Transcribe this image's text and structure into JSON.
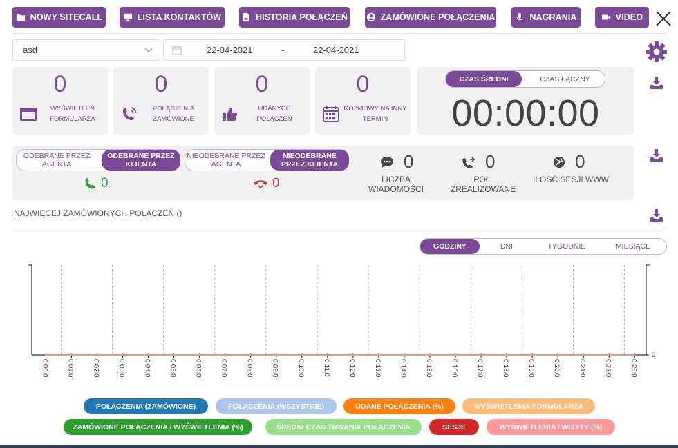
{
  "toolbar": {
    "buttons": [
      {
        "label": "NOWY SITECALL",
        "icon": "folder-icon"
      },
      {
        "label": "LISTA KONTAKTÓW",
        "icon": "monitor-icon"
      },
      {
        "label": "HISTORIA POŁĄCZEŃ",
        "icon": "document-icon"
      },
      {
        "label": "ZAMÓWIONE POŁĄCZENIA",
        "icon": "user-circle-icon"
      },
      {
        "label": "NAGRANIA",
        "icon": "microphone-icon"
      },
      {
        "label": "VIDEO",
        "icon": "video-camera-icon"
      }
    ]
  },
  "filters": {
    "select_value": "asd",
    "date_from": "22-04-2021",
    "date_separator": "-",
    "date_to": "22-04-2021"
  },
  "stats": [
    {
      "value": "0",
      "label": "WYŚWIETLEŃ FORMULARZA",
      "icon": "window-icon"
    },
    {
      "value": "0",
      "label": "POŁĄCZENIA ZAMÓWIONE",
      "icon": "phone-ringing-icon"
    },
    {
      "value": "0",
      "label": "UDANYCH POŁĄCZEŃ",
      "icon": "thumbs-up-icon"
    },
    {
      "value": "0",
      "label": "ROZMOWY NA INNY TERMIN",
      "icon": "calendar-icon"
    }
  ],
  "time": {
    "toggle_avg": "CZAS ŚREDNI",
    "toggle_total": "CZAS ŁĄCZNY",
    "value": "00:00:00"
  },
  "calls": {
    "answered_agent": "ODEBRANE PRZEZ AGENTA",
    "answered_client": "ODEBRANE PRZEZ KLIENTA",
    "answered_count": "0",
    "missed_agent": "NIEODEBRANE PRZEZ AGENTA",
    "missed_client": "NIEODEBRANE PRZEZ KLIENTA",
    "missed_count": "0",
    "messages_value": "0",
    "messages_label": "LICZBA WIADOMOŚCI",
    "realized_value": "0",
    "realized_label": "POŁ. ZREALIZOWANE",
    "sessions_value": "0",
    "sessions_label": "ILOŚĆ SESJI WWW"
  },
  "section": {
    "title": "NAJWIĘCEJ ZAMÓWIONYCH POŁĄCZEŃ ()"
  },
  "chart_tabs": {
    "hours": "GODZINY",
    "days": "DNI",
    "weeks": "TYGODNIE",
    "months": "MIESIĄCE"
  },
  "chart_data": {
    "type": "line",
    "x": [
      "0 00:0",
      "0 01:0",
      "0 02:0",
      "0 03:0",
      "0 04:0",
      "0 05:0",
      "0 06:0",
      "0 07:0",
      "0 08:0",
      "0 09:0",
      "0 10:0",
      "0 11:0",
      "0 12:0",
      "0 13:0",
      "0 14:0",
      "0 15:0",
      "0 16:0",
      "0 17:0",
      "0 18:0",
      "0 19:0",
      "0 20:0",
      "0 21:0",
      "0 22:0",
      "0 23:0"
    ],
    "series": [
      {
        "name": "POŁĄCZENIA (ZAMÓWIONE)",
        "color": "#1f77b4",
        "values": [
          0,
          0,
          0,
          0,
          0,
          0,
          0,
          0,
          0,
          0,
          0,
          0,
          0,
          0,
          0,
          0,
          0,
          0,
          0,
          0,
          0,
          0,
          0,
          0
        ]
      },
      {
        "name": "POŁĄCZENIA (WSZYSTKIE)",
        "color": "#aec7e8",
        "values": [
          0,
          0,
          0,
          0,
          0,
          0,
          0,
          0,
          0,
          0,
          0,
          0,
          0,
          0,
          0,
          0,
          0,
          0,
          0,
          0,
          0,
          0,
          0,
          0
        ]
      },
      {
        "name": "UDANE POŁĄCZENIA (%)",
        "color": "#ff7f0e",
        "values": [
          0,
          0,
          0,
          0,
          0,
          0,
          0,
          0,
          0,
          0,
          0,
          0,
          0,
          0,
          0,
          0,
          0,
          0,
          0,
          0,
          0,
          0,
          0,
          0
        ]
      },
      {
        "name": "WYŚWIETLENIA FORMULARZA",
        "color": "#ffbb78",
        "values": [
          0,
          0,
          0,
          0,
          0,
          0,
          0,
          0,
          0,
          0,
          0,
          0,
          0,
          0,
          0,
          0,
          0,
          0,
          0,
          0,
          0,
          0,
          0,
          0
        ]
      },
      {
        "name": "ZAMÓWIONE POŁĄCZENIA / WYŚWIETLENIA (%)",
        "color": "#2ca02c",
        "values": [
          0,
          0,
          0,
          0,
          0,
          0,
          0,
          0,
          0,
          0,
          0,
          0,
          0,
          0,
          0,
          0,
          0,
          0,
          0,
          0,
          0,
          0,
          0,
          0
        ]
      },
      {
        "name": "ŚREDNI CZAS TRWANIA POŁĄCZENIA",
        "color": "#98df8a",
        "values": [
          0,
          0,
          0,
          0,
          0,
          0,
          0,
          0,
          0,
          0,
          0,
          0,
          0,
          0,
          0,
          0,
          0,
          0,
          0,
          0,
          0,
          0,
          0,
          0
        ]
      },
      {
        "name": "SESJE",
        "color": "#d62728",
        "values": [
          0,
          0,
          0,
          0,
          0,
          0,
          0,
          0,
          0,
          0,
          0,
          0,
          0,
          0,
          0,
          0,
          0,
          0,
          0,
          0,
          0,
          0,
          0,
          0
        ]
      },
      {
        "name": "WYŚWIETLENIA / WIZYTY (%)",
        "color": "#ff9896",
        "values": [
          0,
          0,
          0,
          0,
          0,
          0,
          0,
          0,
          0,
          0,
          0,
          0,
          0,
          0,
          0,
          0,
          0,
          0,
          0,
          0,
          0,
          0,
          0,
          0
        ]
      }
    ],
    "y_right_tick": "0",
    "title": "",
    "xlabel": "",
    "ylabel": ""
  },
  "colors": {
    "accent": "#7b4b9a",
    "answered": "#2e9e4a",
    "missed": "#d23b3b"
  }
}
